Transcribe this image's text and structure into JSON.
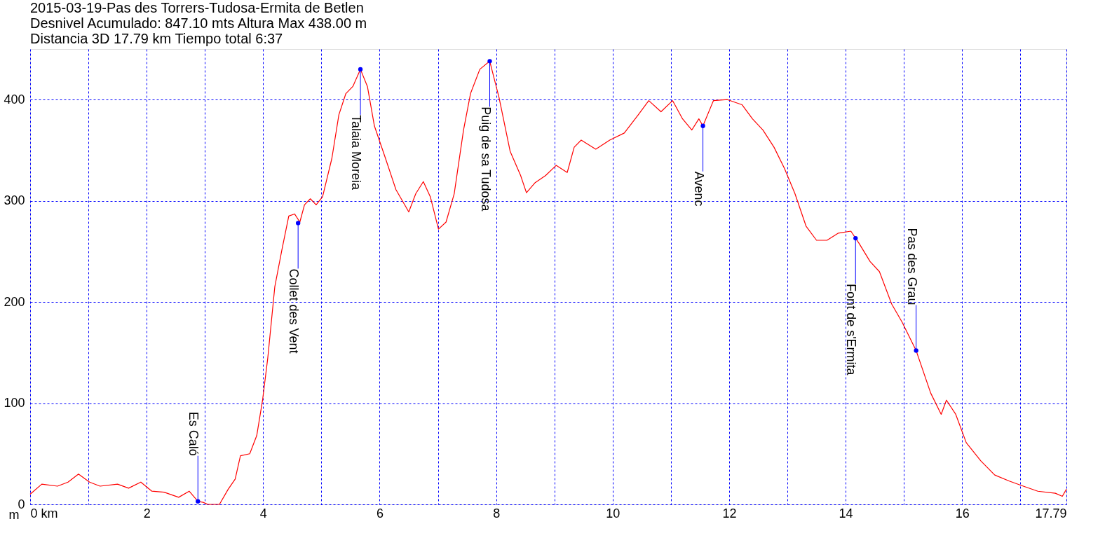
{
  "chart_data": {
    "type": "line",
    "title": "2015-03-19-Pas des Torrers-Tudosa-Ermita de Betlen",
    "subtitle": "Desnivel Acumulado: 847.10 mts  Altura Max 438.00 m\nDistancia 3D 17.79 km  Tiempo total 6:37",
    "ylabel": "m",
    "x": [
      0,
      0.2,
      0.47,
      0.65,
      0.83,
      1.02,
      1.2,
      1.5,
      1.69,
      1.9,
      2.09,
      2.3,
      2.55,
      2.73,
      2.88,
      2.97,
      3.05,
      3.25,
      3.4,
      3.52,
      3.61,
      3.77,
      3.89,
      3.99,
      4.08,
      4.2,
      4.32,
      4.44,
      4.54,
      4.63,
      4.71,
      4.81,
      4.91,
      5.02,
      5.18,
      5.3,
      5.42,
      5.54,
      5.67,
      5.79,
      5.91,
      6.1,
      6.28,
      6.5,
      6.62,
      6.75,
      6.87,
      7.01,
      7.14,
      7.28,
      7.44,
      7.56,
      7.72,
      7.89,
      8.05,
      8.24,
      8.42,
      8.52,
      8.67,
      8.85,
      9.03,
      9.22,
      9.34,
      9.46,
      9.71,
      9.95,
      10.2,
      10.44,
      10.62,
      10.83,
      11.03,
      11.2,
      11.36,
      11.48,
      11.55,
      11.73,
      11.97,
      12.22,
      12.4,
      12.58,
      12.77,
      12.95,
      13.13,
      13.32,
      13.5,
      13.68,
      13.87,
      14.09,
      14.23,
      14.42,
      14.58,
      14.79,
      14.97,
      15.21,
      15.46,
      15.64,
      15.73,
      15.89,
      16.07,
      16.32,
      16.56,
      16.81,
      17.05,
      17.3,
      17.6,
      17.72,
      17.79
    ],
    "series": [
      {
        "color": "#ff0000",
        "values": [
          10,
          20,
          18,
          22,
          30,
          22,
          18,
          20,
          16,
          22,
          13,
          12,
          7,
          13,
          3,
          2,
          0,
          0,
          15,
          25,
          48,
          50,
          68,
          103,
          145,
          215,
          251,
          285,
          287,
          279,
          296,
          302,
          296,
          304,
          342,
          385,
          406,
          413,
          430,
          413,
          374,
          342,
          311,
          289,
          307,
          319,
          304,
          272,
          279,
          307,
          370,
          406,
          430,
          438,
          402,
          349,
          325,
          308,
          318,
          325,
          335,
          328,
          353,
          360,
          351,
          360,
          367,
          385,
          399,
          388,
          399,
          381,
          370,
          381,
          374,
          399,
          400,
          395,
          381,
          370,
          353,
          332,
          307,
          275,
          261,
          261,
          268,
          270,
          258,
          240,
          230,
          198,
          180,
          152,
          110,
          89,
          103,
          89,
          61,
          43,
          29,
          23,
          18,
          13,
          11,
          8,
          15
        ]
      }
    ],
    "xlim": [
      0,
      17.79
    ],
    "ylim": [
      0,
      450
    ],
    "xticks": [
      {
        "value": 0,
        "label": "0 km"
      },
      {
        "value": 1,
        "label": null
      },
      2,
      {
        "value": 3,
        "label": null
      },
      4,
      {
        "value": 5,
        "label": null
      },
      6,
      {
        "value": 7,
        "label": null
      },
      8,
      {
        "value": 9,
        "label": null
      },
      10,
      {
        "value": 11,
        "label": null
      },
      12,
      {
        "value": 13,
        "label": null
      },
      14,
      {
        "value": 15,
        "label": null
      },
      16,
      {
        "value": 17,
        "label": null
      },
      17.79
    ],
    "yticks": [
      0,
      100,
      200,
      300,
      400
    ],
    "grid": true,
    "annotations": [
      {
        "text": "Es Caló",
        "x": 2.88,
        "y": 3
      },
      {
        "text": "Collet des Vent",
        "x": 4.6,
        "y": 278
      },
      {
        "text": "Talaia Moreia",
        "x": 5.67,
        "y": 430
      },
      {
        "text": "Puig de sa Tudosa",
        "x": 7.89,
        "y": 438
      },
      {
        "text": "Avenc",
        "x": 11.55,
        "y": 374
      },
      {
        "text": "Font de s'Ermita",
        "x": 14.17,
        "y": 263
      },
      {
        "text": "Pas des Grau",
        "x": 15.21,
        "y": 152
      }
    ]
  }
}
